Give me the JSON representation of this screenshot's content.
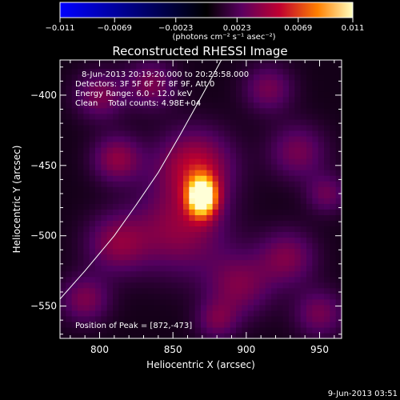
{
  "chart_data": {
    "type": "heatmap",
    "title": "Reconstructed RHESSI Image",
    "xlabel": "Heliocentric X (arcsec)",
    "ylabel": "Heliocentric Y (arcsec)",
    "xlim": [
      773,
      965
    ],
    "ylim": [
      -573,
      -375
    ],
    "x_ticks": [
      800,
      850,
      900,
      950
    ],
    "y_ticks": [
      -400,
      -450,
      -500,
      -550
    ],
    "colorbar": {
      "range": [
        -0.011,
        0.011
      ],
      "tick_values": [
        -0.011,
        -0.0069,
        -0.0023,
        0.0023,
        0.0069,
        0.011
      ],
      "tick_labels": [
        "-0.011",
        "-0.0069",
        "-0.0023",
        "0.0023",
        "0.0069",
        "0.011"
      ],
      "units_label": "(photons cm⁻² s⁻¹ asec⁻²)"
    },
    "annotations": [
      "8-Jun-2013 20:19:20.000 to 20:23:58.000",
      "Detectors: 3F 5F 6F 7F 8F 9F, Att 0",
      "Energy Range: 6.0 - 12.0 keV",
      "Clean    Total counts: 4.98E+04",
      "Position of Peak = [872,-473]"
    ],
    "peak": {
      "x": 872,
      "y": -473,
      "value": 0.011
    },
    "limb_line": [
      [
        773,
        -545
      ],
      [
        790,
        -525
      ],
      [
        810,
        -500
      ],
      [
        825,
        -478
      ],
      [
        840,
        -455
      ],
      [
        855,
        -428
      ],
      [
        870,
        -400
      ],
      [
        883,
        -375
      ]
    ],
    "sources": [
      {
        "x": 870,
        "y": -472,
        "sx": 7,
        "sy": 10,
        "amp": 0.011
      },
      {
        "x": 865,
        "y": -450,
        "sx": 18,
        "sy": 18,
        "amp": 0.0045
      },
      {
        "x": 855,
        "y": -495,
        "sx": 22,
        "sy": 22,
        "amp": 0.0035
      },
      {
        "x": 812,
        "y": -445,
        "sx": 12,
        "sy": 12,
        "amp": 0.0035
      },
      {
        "x": 800,
        "y": -400,
        "sx": 12,
        "sy": 12,
        "amp": 0.003
      },
      {
        "x": 835,
        "y": -392,
        "sx": 12,
        "sy": 12,
        "amp": 0.003
      },
      {
        "x": 812,
        "y": -505,
        "sx": 15,
        "sy": 15,
        "amp": 0.0032
      },
      {
        "x": 790,
        "y": -545,
        "sx": 12,
        "sy": 12,
        "amp": 0.003
      },
      {
        "x": 895,
        "y": -535,
        "sx": 16,
        "sy": 16,
        "amp": 0.003
      },
      {
        "x": 928,
        "y": -515,
        "sx": 14,
        "sy": 14,
        "amp": 0.003
      },
      {
        "x": 935,
        "y": -440,
        "sx": 14,
        "sy": 14,
        "amp": 0.0028
      },
      {
        "x": 915,
        "y": -395,
        "sx": 12,
        "sy": 12,
        "amp": 0.0028
      },
      {
        "x": 950,
        "y": -555,
        "sx": 12,
        "sy": 12,
        "amp": 0.0028
      },
      {
        "x": 955,
        "y": -470,
        "sx": 10,
        "sy": 10,
        "amp": 0.0025
      },
      {
        "x": 880,
        "y": -560,
        "sx": 10,
        "sy": 10,
        "amp": 0.0025
      }
    ]
  },
  "footer_timestamp": "9-Jun-2013 03:51"
}
